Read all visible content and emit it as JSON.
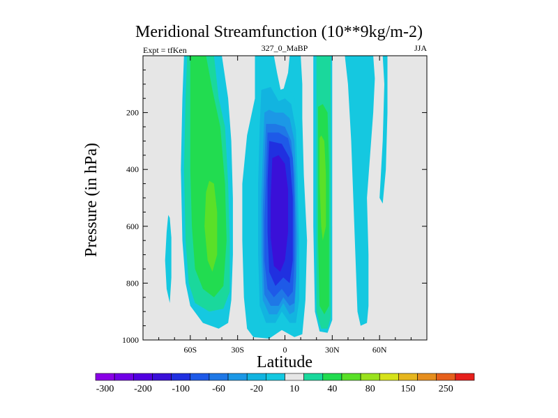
{
  "chart_data": {
    "type": "heatmap",
    "title": "Meridional Streamfunction (10**9kg/m-2)",
    "left_string": "Expt = tfKen",
    "center_string": "327_0_MaBP",
    "right_string": "JJA",
    "xlabel": "Latitude",
    "ylabel": "Pressure (in hPa)",
    "xlim": [
      -90,
      90
    ],
    "ylim": [
      1000,
      0
    ],
    "x_ticks": [
      {
        "value": -60,
        "label": "60S"
      },
      {
        "value": -30,
        "label": "30S"
      },
      {
        "value": 0,
        "label": "0"
      },
      {
        "value": 30,
        "label": "30N"
      },
      {
        "value": 60,
        "label": "60N"
      }
    ],
    "y_ticks": [
      {
        "value": 200,
        "label": "200"
      },
      {
        "value": 400,
        "label": "400"
      },
      {
        "value": 600,
        "label": "600"
      },
      {
        "value": 800,
        "label": "800"
      },
      {
        "value": 1000,
        "label": "1000"
      }
    ],
    "colorbar": {
      "levels": [
        "-300",
        "-250",
        "-200",
        "-150",
        "-100",
        "-80",
        "-60",
        "-40",
        "-20",
        "-10",
        "10",
        "20",
        "40",
        "60",
        "80",
        "100",
        "150",
        "200",
        "250",
        "300"
      ],
      "labels_shown": [
        "-300",
        "-200",
        "-100",
        "-60",
        "-20",
        "10",
        "40",
        "80",
        "150",
        "250"
      ],
      "colors": [
        "#8a00e6",
        "#7000e6",
        "#5200e0",
        "#3a10d8",
        "#2030e0",
        "#1e5ae8",
        "#1f78e6",
        "#1c98e6",
        "#12b4e0",
        "#15c8e0",
        "#e6e6e6",
        "#1ad89c",
        "#22dc50",
        "#5ae028",
        "#9ae21e",
        "#d6e21a",
        "#e6b61e",
        "#e68e1e",
        "#e6601c",
        "#e6201c"
      ]
    },
    "background": "#e6e6e6",
    "contour_regions": [
      {
        "level": -10,
        "color": "#15c8e0",
        "polygon": [
          [
            -19,
            0
          ],
          [
            -19,
            150
          ],
          [
            -24,
            280
          ],
          [
            -27,
            450
          ],
          [
            -27,
            650
          ],
          [
            -26,
            850
          ],
          [
            -24,
            960
          ],
          [
            -20,
            990
          ],
          [
            -10,
            995
          ],
          [
            -2,
            965
          ],
          [
            6,
            990
          ],
          [
            11,
            980
          ],
          [
            13,
            860
          ],
          [
            14,
            650
          ],
          [
            12,
            420
          ],
          [
            11,
            220
          ],
          [
            11,
            100
          ],
          [
            10,
            0
          ],
          [
            3,
            0
          ],
          [
            2,
            60
          ],
          [
            -2,
            140
          ],
          [
            -5,
            60
          ],
          [
            -7,
            0
          ]
        ]
      },
      {
        "level": -10,
        "color": "#15c8e0",
        "polygon": [
          [
            18,
            0
          ],
          [
            18,
            200
          ],
          [
            18,
            600
          ],
          [
            19,
            900
          ],
          [
            22,
            970
          ],
          [
            27,
            975
          ],
          [
            30,
            930
          ],
          [
            30,
            600
          ],
          [
            30,
            200
          ],
          [
            30,
            0
          ]
        ]
      },
      {
        "level": -10,
        "color": "#15c8e0",
        "polygon": [
          [
            38,
            0
          ],
          [
            40,
            100
          ],
          [
            42,
            300
          ],
          [
            44,
            600
          ],
          [
            46,
            900
          ],
          [
            48,
            950
          ],
          [
            52,
            940
          ],
          [
            53,
            880
          ],
          [
            53,
            700
          ],
          [
            52,
            500
          ],
          [
            54,
            350
          ],
          [
            56,
            200
          ],
          [
            57,
            80
          ],
          [
            56,
            0
          ]
        ]
      },
      {
        "level": -10,
        "color": "#15c8e0",
        "polygon": [
          [
            62,
            0
          ],
          [
            63,
            100
          ],
          [
            62,
            300
          ],
          [
            60,
            500
          ],
          [
            62,
            520
          ],
          [
            64,
            400
          ],
          [
            65,
            200
          ],
          [
            65,
            0
          ]
        ]
      },
      {
        "level": -10,
        "color": "#15c8e0",
        "polygon": [
          [
            -74,
            560
          ],
          [
            -75,
            620
          ],
          [
            -76,
            720
          ],
          [
            -75,
            820
          ],
          [
            -73,
            870
          ],
          [
            -72,
            780
          ],
          [
            -72,
            640
          ],
          [
            -73,
            570
          ]
        ]
      },
      {
        "level": -10,
        "color": "#15c8e0",
        "polygon": [
          [
            -64,
            0
          ],
          [
            -65,
            150
          ],
          [
            -66,
            400
          ],
          [
            -65,
            650
          ],
          [
            -63,
            800
          ],
          [
            -60,
            880
          ],
          [
            -52,
            940
          ],
          [
            -42,
            960
          ],
          [
            -36,
            940
          ],
          [
            -34,
            860
          ],
          [
            -33,
            700
          ],
          [
            -33,
            500
          ],
          [
            -34,
            300
          ],
          [
            -36,
            150
          ],
          [
            -40,
            0
          ]
        ]
      },
      {
        "level": 10,
        "color": "#1ad89c",
        "polygon": [
          [
            -62,
            0
          ],
          [
            -63,
            150
          ],
          [
            -64,
            400
          ],
          [
            -63,
            650
          ],
          [
            -61,
            800
          ],
          [
            -57,
            870
          ],
          [
            -48,
            900
          ],
          [
            -39,
            890
          ],
          [
            -35,
            830
          ],
          [
            -35,
            650
          ],
          [
            -36,
            450
          ],
          [
            -38,
            250
          ],
          [
            -42,
            150
          ],
          [
            -45,
            0
          ]
        ]
      },
      {
        "level": 20,
        "color": "#22dc50",
        "polygon": [
          [
            -60,
            0
          ],
          [
            -60,
            200
          ],
          [
            -60,
            400
          ],
          [
            -59,
            600
          ],
          [
            -57,
            750
          ],
          [
            -52,
            820
          ],
          [
            -45,
            850
          ],
          [
            -39,
            810
          ],
          [
            -37,
            650
          ],
          [
            -38,
            450
          ],
          [
            -41,
            250
          ],
          [
            -46,
            120
          ],
          [
            -50,
            0
          ]
        ]
      },
      {
        "level": 40,
        "color": "#5ae028",
        "polygon": [
          [
            -50,
            480
          ],
          [
            -51,
            600
          ],
          [
            -49,
            720
          ],
          [
            -46,
            760
          ],
          [
            -43,
            700
          ],
          [
            -43,
            550
          ],
          [
            -45,
            450
          ],
          [
            -48,
            440
          ]
        ]
      },
      {
        "level": 10,
        "color": "#1ad89c",
        "polygon": [
          [
            20,
            0
          ],
          [
            20,
            200
          ],
          [
            20,
            600
          ],
          [
            20,
            900
          ],
          [
            23,
            960
          ],
          [
            27,
            960
          ],
          [
            29,
            920
          ],
          [
            29,
            600
          ],
          [
            29,
            200
          ],
          [
            29,
            0
          ]
        ]
      },
      {
        "level": -10,
        "color": "#15c8e0",
        "polygon": [
          [
            -16,
            0
          ],
          [
            -16,
            120
          ],
          [
            -18,
            280
          ],
          [
            -19,
            500
          ],
          [
            -19,
            700
          ],
          [
            -18,
            880
          ],
          [
            -15,
            960
          ],
          [
            -8,
            960
          ],
          [
            -3,
            930
          ],
          [
            3,
            960
          ],
          [
            8,
            960
          ],
          [
            10,
            880
          ],
          [
            10,
            650
          ],
          [
            9,
            420
          ],
          [
            8,
            240
          ],
          [
            6,
            150
          ],
          [
            2,
            110
          ],
          [
            -3,
            120
          ],
          [
            -8,
            0
          ]
        ]
      },
      {
        "level": -20,
        "color": "#12b4e0",
        "polygon": [
          [
            -15,
            120
          ],
          [
            -16,
            250
          ],
          [
            -17,
            450
          ],
          [
            -17,
            700
          ],
          [
            -16,
            880
          ],
          [
            -12,
            940
          ],
          [
            -6,
            940
          ],
          [
            -2,
            900
          ],
          [
            3,
            940
          ],
          [
            7,
            940
          ],
          [
            9,
            860
          ],
          [
            9,
            650
          ],
          [
            8,
            420
          ],
          [
            7,
            260
          ],
          [
            4,
            170
          ],
          [
            0,
            150
          ],
          [
            -4,
            160
          ],
          [
            -9,
            110
          ]
        ]
      },
      {
        "level": -40,
        "color": "#1c98e6",
        "polygon": [
          [
            -13,
            200
          ],
          [
            -14,
            350
          ],
          [
            -15,
            500
          ],
          [
            -15,
            700
          ],
          [
            -14,
            860
          ],
          [
            -10,
            910
          ],
          [
            -5,
            910
          ],
          [
            -1,
            870
          ],
          [
            3,
            910
          ],
          [
            6,
            900
          ],
          [
            7,
            820
          ],
          [
            8,
            650
          ],
          [
            7,
            430
          ],
          [
            6,
            300
          ],
          [
            3,
            220
          ],
          [
            -1,
            200
          ],
          [
            -6,
            200
          ],
          [
            -10,
            190
          ]
        ]
      },
      {
        "level": -60,
        "color": "#1f78e6",
        "polygon": [
          [
            -12,
            240
          ],
          [
            -13,
            380
          ],
          [
            -14,
            550
          ],
          [
            -14,
            700
          ],
          [
            -13,
            840
          ],
          [
            -9,
            880
          ],
          [
            -4,
            880
          ],
          [
            -1,
            850
          ],
          [
            3,
            880
          ],
          [
            6,
            870
          ],
          [
            7,
            780
          ],
          [
            7,
            620
          ],
          [
            6,
            420
          ],
          [
            4,
            300
          ],
          [
            0,
            250
          ],
          [
            -6,
            240
          ]
        ]
      },
      {
        "level": -80,
        "color": "#1e5ae8",
        "polygon": [
          [
            -11,
            270
          ],
          [
            -12,
            420
          ],
          [
            -13,
            580
          ],
          [
            -13,
            720
          ],
          [
            -11,
            820
          ],
          [
            -7,
            850
          ],
          [
            -2,
            820
          ],
          [
            2,
            850
          ],
          [
            5,
            830
          ],
          [
            6,
            720
          ],
          [
            6,
            520
          ],
          [
            5,
            360
          ],
          [
            2,
            290
          ],
          [
            -4,
            270
          ]
        ]
      },
      {
        "level": -100,
        "color": "#2030e0",
        "polygon": [
          [
            -10,
            300
          ],
          [
            -11,
            440
          ],
          [
            -11,
            620
          ],
          [
            -10,
            760
          ],
          [
            -6,
            810
          ],
          [
            -1,
            780
          ],
          [
            3,
            800
          ],
          [
            5,
            720
          ],
          [
            5,
            500
          ],
          [
            3,
            360
          ],
          [
            -2,
            310
          ]
        ]
      },
      {
        "level": -150,
        "color": "#3a10d8",
        "polygon": [
          [
            -8,
            360
          ],
          [
            -9,
            500
          ],
          [
            -9,
            640
          ],
          [
            -7,
            740
          ],
          [
            -3,
            760
          ],
          [
            0,
            720
          ],
          [
            2,
            620
          ],
          [
            2,
            470
          ],
          [
            0,
            380
          ],
          [
            -4,
            350
          ]
        ]
      },
      {
        "level": 20,
        "color": "#22dc50",
        "polygon": [
          [
            21,
            180
          ],
          [
            21,
            400
          ],
          [
            21,
            650
          ],
          [
            22,
            880
          ],
          [
            25,
            910
          ],
          [
            28,
            880
          ],
          [
            28,
            640
          ],
          [
            28,
            380
          ],
          [
            27,
            200
          ],
          [
            24,
            170
          ]
        ]
      },
      {
        "level": 40,
        "color": "#5ae028",
        "polygon": [
          [
            22,
            290
          ],
          [
            22,
            450
          ],
          [
            23,
            600
          ],
          [
            24,
            650
          ],
          [
            26,
            600
          ],
          [
            26,
            420
          ],
          [
            25,
            300
          ],
          [
            23,
            280
          ]
        ]
      }
    ]
  }
}
